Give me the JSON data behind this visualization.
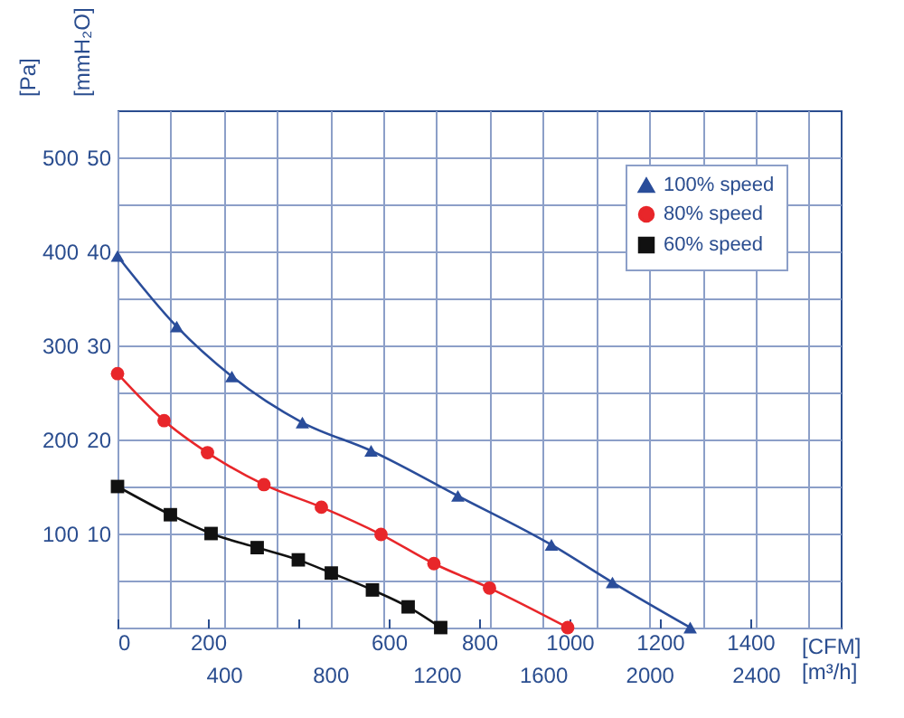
{
  "chart_data": {
    "type": "line",
    "xlabel": "[CFM]",
    "x2label": "[m³/h]",
    "ylabel": "[Pa]",
    "y2label": "[mmH₂O]",
    "xlim": [
      0,
      1600
    ],
    "xticks": [
      0,
      200,
      {
        "value": 400,
        "label": null
      },
      600,
      800,
      1000,
      1200,
      1400
    ],
    "x2lim": [
      0,
      2720
    ],
    "x2ticks": [
      {
        "value": 0,
        "label": null
      },
      {
        "value": 200,
        "label": null
      },
      400,
      {
        "value": 600,
        "label": null
      },
      800,
      {
        "value": 1000,
        "label": null
      },
      1200,
      {
        "value": 1400,
        "label": null
      },
      1600,
      {
        "value": 1800,
        "label": null
      },
      2000,
      {
        "value": 2200,
        "label": null
      },
      2400,
      {
        "value": 2600,
        "label": null
      }
    ],
    "ylim": [
      0,
      550
    ],
    "yticks": [
      {
        "value": 0,
        "label": null
      },
      {
        "value": 50,
        "label": null
      },
      100,
      {
        "value": 150,
        "label": null
      },
      200,
      {
        "value": 250,
        "label": null
      },
      300,
      {
        "value": 350,
        "label": null
      },
      400,
      {
        "value": 450,
        "label": null
      },
      500
    ],
    "y2lim": [
      0,
      55
    ],
    "y2ticks": [
      10,
      20,
      30,
      40,
      50
    ],
    "grid": true,
    "legend": "top right",
    "series": [
      {
        "name": "100% speed",
        "color": "#2a4d9a",
        "marker": "triangle",
        "x": [
          0,
          131,
          253,
          409,
          561,
          753,
          960,
          1095,
          1267
        ],
        "values": [
          395,
          320,
          267,
          218,
          188,
          140,
          88,
          48,
          0
        ]
      },
      {
        "name": "80% speed",
        "color": "#e8262a",
        "marker": "circle",
        "x": [
          0,
          103,
          199,
          324,
          451,
          583,
          700,
          823,
          996
        ],
        "values": [
          270,
          220,
          186,
          152,
          128,
          99,
          68,
          42,
          0
        ]
      },
      {
        "name": "60% speed",
        "color": "#111111",
        "marker": "square",
        "x": [
          0,
          117,
          207,
          309,
          400,
          473,
          564,
          643,
          715
        ],
        "values": [
          150,
          120,
          100,
          85,
          72,
          58,
          40,
          22,
          0
        ]
      }
    ]
  }
}
